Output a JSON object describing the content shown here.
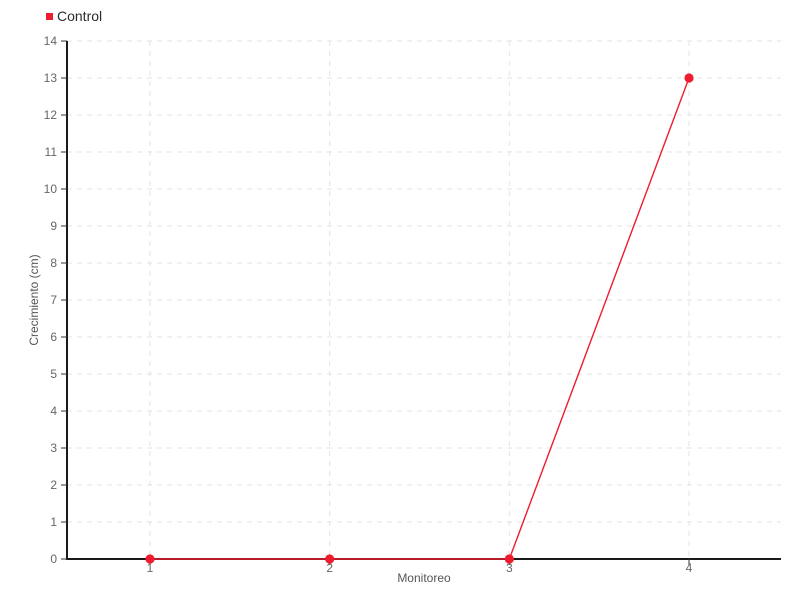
{
  "chart_data": {
    "type": "line",
    "categories": [
      "1",
      "2",
      "3",
      "4"
    ],
    "series": [
      {
        "name": "Control",
        "color": "#ee1c2e",
        "values": [
          0,
          0,
          0,
          13
        ]
      }
    ],
    "title": "",
    "xlabel": "Monitoreo",
    "ylabel": "Crecimiento (cm)",
    "ylim": [
      0,
      14
    ],
    "ytick_step": 1,
    "grid": true,
    "grid_style": "dashed",
    "legend_position": "top-left",
    "colors": {
      "accent": "#ee1c2e",
      "axis": "#1a1a1a",
      "grid": "#e3e3e3",
      "tick_label": "#666666",
      "axis_title": "#555555",
      "legend_text": "#2b2b2b",
      "background": "#ffffff"
    }
  }
}
